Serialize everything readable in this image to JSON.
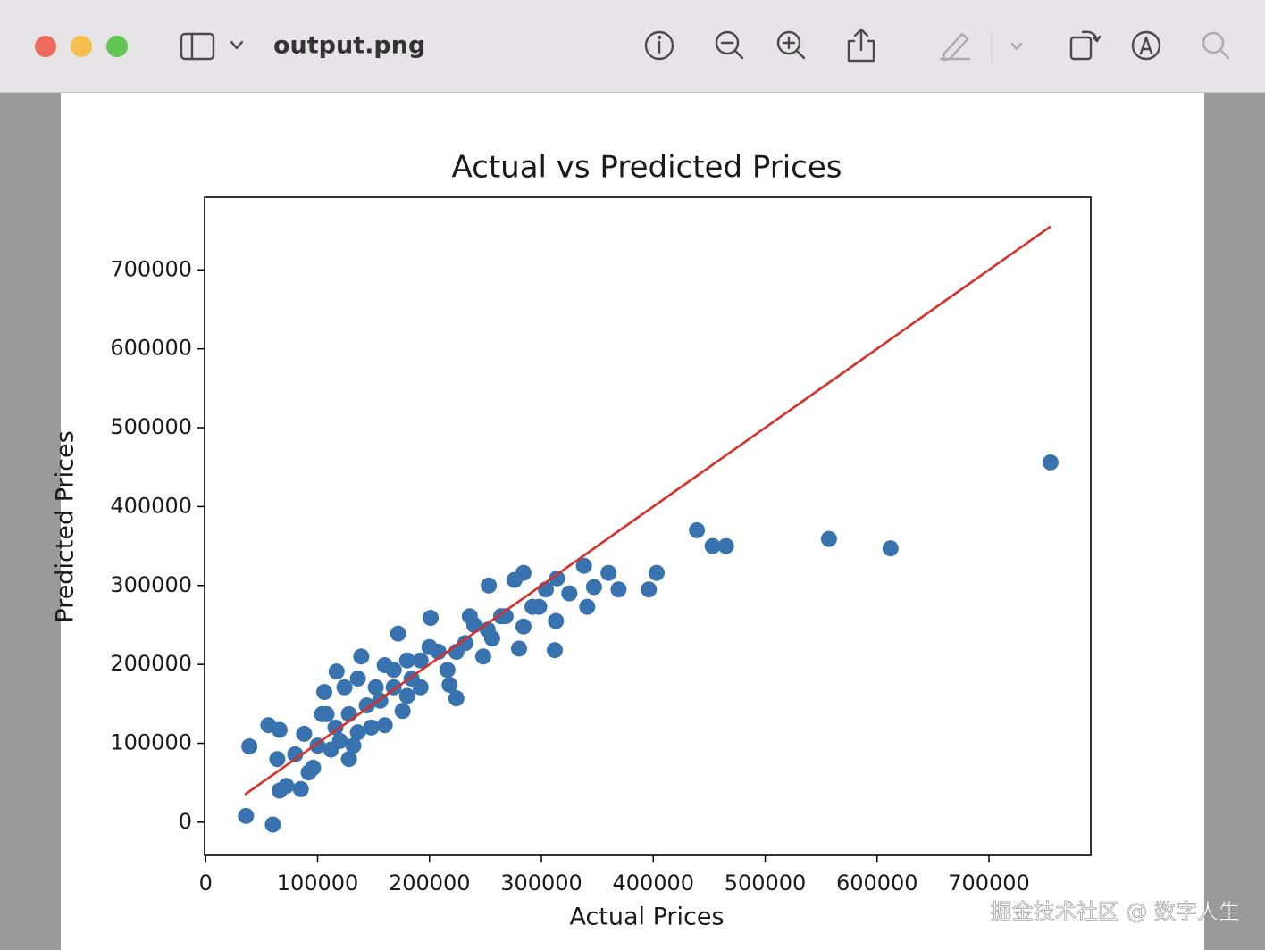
{
  "window": {
    "title": "output.png"
  },
  "watermark": "掘金技术社区 @ 数字人生",
  "chart_data": {
    "type": "scatter",
    "title": "Actual vs Predicted Prices",
    "x_label": "Actual Prices",
    "y_label": "Predicted Prices",
    "color": "#3873b0",
    "x": [
      755000,
      612000,
      557000,
      465000,
      453000,
      439000,
      403000,
      396000,
      369000,
      360000,
      347000,
      341000,
      338000,
      325000,
      313000,
      312000,
      314000,
      304000,
      298000,
      284000,
      276000,
      253000,
      284000,
      280000,
      264000,
      252000,
      248000,
      224000,
      218000,
      201000,
      192000,
      172000,
      139000,
      117000,
      36000,
      60000,
      39000,
      56000,
      66000,
      64000,
      66000,
      85000,
      88000,
      104000,
      106000,
      128000,
      160000,
      176000,
      184000,
      208000,
      232000,
      216000,
      240000,
      96000,
      80000,
      72000,
      120000,
      136000,
      144000,
      152000,
      168000,
      192000,
      128000,
      112000,
      100000,
      92000,
      136000,
      148000,
      132000,
      156000,
      180000,
      200000,
      224000,
      256000,
      268000,
      292000,
      236000,
      180000,
      168000,
      116000,
      108000,
      124000,
      160000
    ],
    "y": [
      456000,
      347000,
      359000,
      350000,
      350000,
      370000,
      316000,
      295000,
      295000,
      316000,
      298000,
      273000,
      325000,
      290000,
      255000,
      218000,
      309000,
      295000,
      273000,
      316000,
      307000,
      300000,
      248000,
      220000,
      261000,
      244000,
      210000,
      157000,
      174000,
      259000,
      171000,
      239000,
      210000,
      191000,
      8000,
      -3000,
      96000,
      123000,
      117000,
      80000,
      40000,
      42000,
      112000,
      137000,
      165000,
      80000,
      123000,
      141000,
      182000,
      216000,
      227000,
      193000,
      250000,
      69000,
      86000,
      46000,
      103000,
      114000,
      148000,
      171000,
      193000,
      205000,
      137000,
      92000,
      97000,
      63000,
      182000,
      120000,
      97000,
      154000,
      205000,
      222000,
      216000,
      233000,
      261000,
      273000,
      261000,
      160000,
      171000,
      120000,
      137000,
      171000,
      199000
    ],
    "reference_line": {
      "x": [
        35000,
        755000
      ],
      "y": [
        35000,
        755000
      ],
      "color": "#d62f27"
    },
    "xlim": [
      -1000,
      791000
    ],
    "ylim": [
      -42000,
      792000
    ],
    "xticks": [
      0,
      100000,
      200000,
      300000,
      400000,
      500000,
      600000,
      700000
    ],
    "yticks": [
      0,
      100000,
      200000,
      300000,
      400000,
      500000,
      600000,
      700000
    ]
  }
}
